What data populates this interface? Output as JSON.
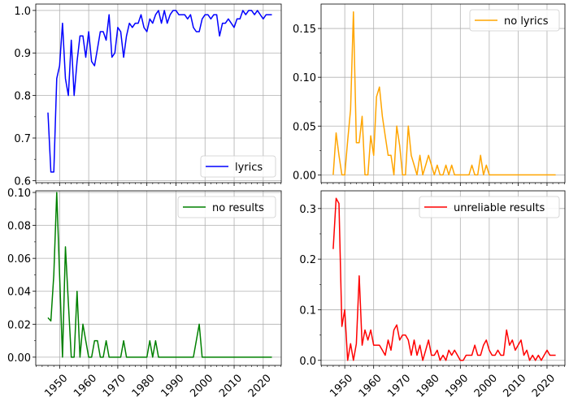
{
  "chart_data": [
    {
      "type": "line",
      "series": [
        {
          "name": "lyrics",
          "color": "#0000ff",
          "x": [
            1946,
            1947,
            1948,
            1949,
            1950,
            1951,
            1952,
            1953,
            1954,
            1955,
            1956,
            1957,
            1958,
            1959,
            1960,
            1961,
            1962,
            1963,
            1964,
            1965,
            1966,
            1967,
            1968,
            1969,
            1970,
            1971,
            1972,
            1973,
            1974,
            1975,
            1976,
            1977,
            1978,
            1979,
            1980,
            1981,
            1982,
            1983,
            1984,
            1985,
            1986,
            1987,
            1988,
            1989,
            1990,
            1991,
            1992,
            1993,
            1994,
            1995,
            1996,
            1997,
            1998,
            1999,
            2000,
            2001,
            2002,
            2003,
            2004,
            2005,
            2006,
            2007,
            2008,
            2009,
            2010,
            2011,
            2012,
            2013,
            2014,
            2015,
            2016,
            2017,
            2018,
            2019,
            2020,
            2021,
            2022,
            2023
          ],
          "values": [
            0.76,
            0.62,
            0.62,
            0.84,
            0.87,
            0.97,
            0.84,
            0.8,
            0.93,
            0.8,
            0.88,
            0.94,
            0.94,
            0.89,
            0.95,
            0.88,
            0.87,
            0.91,
            0.95,
            0.95,
            0.93,
            0.99,
            0.89,
            0.9,
            0.96,
            0.95,
            0.89,
            0.94,
            0.97,
            0.96,
            0.97,
            0.97,
            0.99,
            0.96,
            0.95,
            0.98,
            0.97,
            0.99,
            1.0,
            0.97,
            1.0,
            0.97,
            0.99,
            1.0,
            1.0,
            0.99,
            0.99,
            0.99,
            0.98,
            0.99,
            0.96,
            0.95,
            0.95,
            0.98,
            0.99,
            0.99,
            0.98,
            0.99,
            0.99,
            0.94,
            0.97,
            0.97,
            0.98,
            0.97,
            0.96,
            0.98,
            0.98,
            1.0,
            0.99,
            1.0,
            1.0,
            0.99,
            1.0,
            0.99,
            0.98,
            0.99,
            0.99,
            0.99
          ]
        }
      ],
      "xlim": [
        1941.8,
        2026.2
      ],
      "ylim": [
        0.595,
        1.015
      ],
      "yticks": [
        0.6,
        0.7,
        0.8,
        0.9,
        1.0
      ],
      "ytick_labels": [
        "0.6",
        "0.7",
        "0.8",
        "0.9",
        "1.0"
      ],
      "xticks": [
        1950,
        1960,
        1970,
        1980,
        1990,
        2000,
        2010,
        2020
      ],
      "xtick_labels": [],
      "grid": true,
      "legend": "lower right"
    },
    {
      "type": "line",
      "series": [
        {
          "name": "no lyrics",
          "color": "#ffa500",
          "x": [
            1946,
            1947,
            1948,
            1949,
            1950,
            1951,
            1952,
            1953,
            1954,
            1955,
            1956,
            1957,
            1958,
            1959,
            1960,
            1961,
            1962,
            1963,
            1964,
            1965,
            1966,
            1967,
            1968,
            1969,
            1970,
            1971,
            1972,
            1973,
            1974,
            1975,
            1976,
            1977,
            1978,
            1979,
            1980,
            1981,
            1982,
            1983,
            1984,
            1985,
            1986,
            1987,
            1988,
            1989,
            1990,
            1991,
            1992,
            1993,
            1994,
            1995,
            1996,
            1997,
            1998,
            1999,
            2000,
            2001,
            2002,
            2003,
            2004,
            2005,
            2006,
            2007,
            2008,
            2009,
            2010,
            2011,
            2012,
            2013,
            2014,
            2015,
            2016,
            2017,
            2018,
            2019,
            2020,
            2021,
            2022,
            2023
          ],
          "values": [
            0,
            0.043,
            0.02,
            0,
            0,
            0.035,
            0.067,
            0.167,
            0.033,
            0.033,
            0.06,
            0,
            0,
            0.04,
            0.02,
            0.08,
            0.09,
            0.06,
            0.04,
            0.02,
            0.02,
            0,
            0.05,
            0.03,
            0,
            0,
            0.05,
            0.02,
            0.01,
            0,
            0.02,
            0,
            0.01,
            0.02,
            0.01,
            0,
            0.01,
            0,
            0,
            0.01,
            0,
            0.01,
            0,
            0,
            0,
            0,
            0,
            0,
            0.01,
            0,
            0,
            0.02,
            0,
            0.01,
            0,
            0,
            0,
            0,
            0,
            0,
            0,
            0,
            0,
            0,
            0,
            0,
            0,
            0,
            0,
            0,
            0,
            0,
            0,
            0,
            0,
            0,
            0,
            0
          ]
        }
      ],
      "xlim": [
        1941.8,
        2026.2
      ],
      "ylim": [
        -0.008,
        0.175
      ],
      "yticks": [
        0,
        0.05,
        0.1,
        0.15
      ],
      "ytick_labels": [
        "0.00",
        "0.05",
        "0.10",
        "0.15"
      ],
      "xticks": [
        1950,
        1960,
        1970,
        1980,
        1990,
        2000,
        2010,
        2020
      ],
      "xtick_labels": [],
      "grid": true,
      "legend": "upper right"
    },
    {
      "type": "line",
      "series": [
        {
          "name": "no results",
          "color": "#008000",
          "x": [
            1946,
            1947,
            1948,
            1949,
            1950,
            1951,
            1952,
            1953,
            1954,
            1955,
            1956,
            1957,
            1958,
            1959,
            1960,
            1961,
            1962,
            1963,
            1964,
            1965,
            1966,
            1967,
            1968,
            1969,
            1970,
            1971,
            1972,
            1973,
            1974,
            1975,
            1976,
            1977,
            1978,
            1979,
            1980,
            1981,
            1982,
            1983,
            1984,
            1985,
            1986,
            1987,
            1988,
            1989,
            1990,
            1991,
            1992,
            1993,
            1994,
            1995,
            1996,
            1997,
            1998,
            1999,
            2000,
            2001,
            2002,
            2003,
            2004,
            2005,
            2006,
            2007,
            2008,
            2009,
            2010,
            2011,
            2012,
            2013,
            2014,
            2015,
            2016,
            2017,
            2018,
            2019,
            2020,
            2021,
            2022,
            2023
          ],
          "values": [
            0.024,
            0.022,
            0.05,
            0.1,
            0.05,
            0,
            0.067,
            0.033,
            0,
            0,
            0.04,
            0,
            0.02,
            0.01,
            0,
            0,
            0.01,
            0.01,
            0,
            0,
            0.01,
            0,
            0,
            0,
            0,
            0,
            0.01,
            0,
            0,
            0,
            0,
            0,
            0,
            0,
            0,
            0.01,
            0,
            0.01,
            0,
            0,
            0,
            0,
            0,
            0,
            0,
            0,
            0,
            0,
            0,
            0,
            0,
            0.01,
            0.02,
            0,
            0,
            0,
            0,
            0,
            0,
            0,
            0,
            0,
            0,
            0,
            0,
            0,
            0,
            0,
            0,
            0,
            0,
            0,
            0,
            0,
            0,
            0,
            0,
            0
          ]
        }
      ],
      "xlim": [
        1941.8,
        2026.2
      ],
      "ylim": [
        -0.005,
        0.101
      ],
      "yticks": [
        0,
        0.02,
        0.04,
        0.06,
        0.08,
        0.1
      ],
      "ytick_labels": [
        "0.00",
        "0.02",
        "0.04",
        "0.06",
        "0.08",
        "0.10"
      ],
      "xticks": [
        1950,
        1960,
        1970,
        1980,
        1990,
        2000,
        2010,
        2020
      ],
      "xtick_labels": [
        "1950",
        "1960",
        "1970",
        "1980",
        "1990",
        "2000",
        "2010",
        "2020"
      ],
      "grid": true,
      "legend": "upper right"
    },
    {
      "type": "line",
      "series": [
        {
          "name": "unreliable results",
          "color": "#ff0000",
          "x": [
            1946,
            1947,
            1948,
            1949,
            1950,
            1951,
            1952,
            1953,
            1954,
            1955,
            1956,
            1957,
            1958,
            1959,
            1960,
            1961,
            1962,
            1963,
            1964,
            1965,
            1966,
            1967,
            1968,
            1969,
            1970,
            1971,
            1972,
            1973,
            1974,
            1975,
            1976,
            1977,
            1978,
            1979,
            1980,
            1981,
            1982,
            1983,
            1984,
            1985,
            1986,
            1987,
            1988,
            1989,
            1990,
            1991,
            1992,
            1993,
            1994,
            1995,
            1996,
            1997,
            1998,
            1999,
            2000,
            2001,
            2002,
            2003,
            2004,
            2005,
            2006,
            2007,
            2008,
            2009,
            2010,
            2011,
            2012,
            2013,
            2014,
            2015,
            2016,
            2017,
            2018,
            2019,
            2020,
            2021,
            2022,
            2023
          ],
          "values": [
            0.22,
            0.32,
            0.31,
            0.067,
            0.1,
            0,
            0.033,
            0,
            0.033,
            0.167,
            0.03,
            0.06,
            0.04,
            0.06,
            0.03,
            0.03,
            0.03,
            0.02,
            0.01,
            0.04,
            0.02,
            0.06,
            0.07,
            0.04,
            0.05,
            0.05,
            0.04,
            0.01,
            0.04,
            0.01,
            0.03,
            0,
            0.02,
            0.04,
            0.01,
            0.01,
            0.02,
            0,
            0.01,
            0,
            0.02,
            0.01,
            0.02,
            0.01,
            0,
            0,
            0.01,
            0.01,
            0.01,
            0.03,
            0.01,
            0.01,
            0.03,
            0.04,
            0.02,
            0.01,
            0.01,
            0.02,
            0.01,
            0.01,
            0.06,
            0.03,
            0.04,
            0.02,
            0.03,
            0.04,
            0.01,
            0.02,
            0,
            0.01,
            0,
            0.01,
            0,
            0.01,
            0.02,
            0.01,
            0.01,
            0.01
          ]
        }
      ],
      "xlim": [
        1941.8,
        2026.2
      ],
      "ylim": [
        -0.01,
        0.335
      ],
      "yticks": [
        0,
        0.1,
        0.2,
        0.3
      ],
      "ytick_labels": [
        "0.0",
        "0.1",
        "0.2",
        "0.3"
      ],
      "xticks": [
        1950,
        1960,
        1970,
        1980,
        1990,
        2000,
        2010,
        2020
      ],
      "xtick_labels": [
        "1950",
        "1960",
        "1970",
        "1980",
        "1990",
        "2000",
        "2010",
        "2020"
      ],
      "grid": true,
      "legend": "upper right"
    }
  ]
}
